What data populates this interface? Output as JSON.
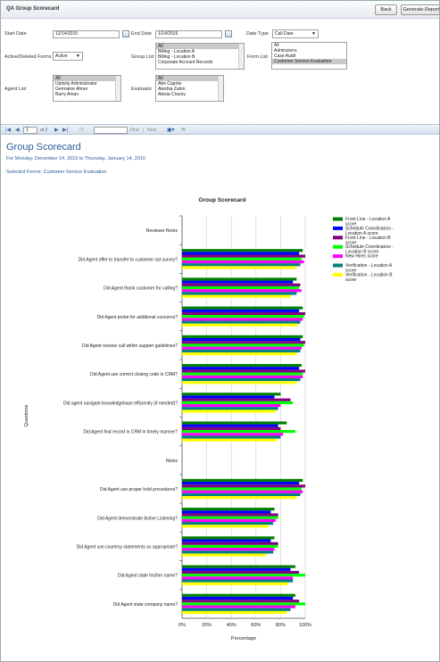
{
  "window": {
    "title": "QA Group Scorecard",
    "back_label": "Back",
    "generate_label": "Generate Report"
  },
  "params": {
    "start_date_label": "Start Date",
    "start_date_value": "12/14/2015",
    "end_date_label": "End Date",
    "end_date_value": "1/14/2016",
    "date_type_label": "Date Type",
    "date_type_value": "Call Date",
    "forms_label": "Active/Deleted Forms",
    "forms_value": "Active",
    "group_list_label": "Group List",
    "group_list_items": [
      "All",
      "Billing - Location A",
      "Billing - Location B",
      "Corporate Account Records"
    ],
    "form_list_label": "Form List",
    "form_list_items": [
      "All",
      "Admissions",
      "Case Audit",
      "Customer Service Evaluation"
    ],
    "agent_list_label": "Agent List",
    "agent_list_items": [
      "All",
      "Uptivity Administrator",
      "Germaine Ahner",
      "Barry Aman"
    ],
    "evaluator_label": "Evaluator",
    "evaluator_items": [
      "All",
      "Abe Capote",
      "Aleshia Zahm",
      "Alesia Cravey"
    ]
  },
  "toolbar": {
    "page_value": "1",
    "page_of": "of 2",
    "find_label": "Find",
    "separator": "|",
    "next_label": "Next"
  },
  "report": {
    "title": "Group Scorecard",
    "subtitle": "For Monday, December 14, 2015 to Thursday, January 14, 2016",
    "forms_line": "Selected Forms: Customer Service Evaluation"
  },
  "chart_data": {
    "type": "bar",
    "orientation": "horizontal",
    "title": "Group Scorecard",
    "xlabel": "Percentage",
    "ylabel": "Questions",
    "xlim": [
      0,
      100
    ],
    "x_ticks": [
      "0%",
      "20%",
      "40%",
      "60%",
      "80%",
      "100%"
    ],
    "grid": true,
    "legend_position": "right",
    "categories": [
      "Reviewer Notes",
      "Did Agent offer to transfer to customer sat survey?",
      "Did Agent thank customer for calling?",
      "Did Agent probe for additional concerns?",
      "Did Agent resolve call within support guidelines?",
      "Did Agent use correct closing code in CRM?",
      "Did agent navigate knowledgebase efficiently (if needed)?",
      "Did Agent find record in CRM in timely manner?",
      "Notes",
      "Did Agent use proper hold procedures?",
      "Did Agent demonstrate Active Listening?",
      "Did Agent use courtesy statements as appropriate?",
      "Did Agent state his/her name?",
      "Did Agent state company name?"
    ],
    "series": [
      {
        "name": "Front Line - Location A score",
        "color": "#008000",
        "values": [
          null,
          98,
          93,
          98,
          98,
          97,
          80,
          85,
          null,
          98,
          75,
          75,
          92,
          92
        ]
      },
      {
        "name": "Schedule Coordinators - Location A score",
        "color": "#0000ff",
        "values": [
          null,
          95,
          90,
          95,
          96,
          95,
          75,
          78,
          null,
          95,
          72,
          72,
          88,
          90
        ]
      },
      {
        "name": "Front Line - Location B score",
        "color": "#800080",
        "values": [
          null,
          100,
          96,
          100,
          100,
          100,
          88,
          80,
          null,
          100,
          78,
          78,
          95,
          95
        ]
      },
      {
        "name": "Schedule Coordinators - Location B score",
        "color": "#00ff00",
        "values": [
          null,
          97,
          95,
          99,
          99,
          98,
          90,
          92,
          null,
          97,
          78,
          78,
          100,
          100
        ]
      },
      {
        "name": "New Hires score",
        "color": "#ff00ff",
        "values": [
          null,
          99,
          97,
          98,
          97,
          98,
          80,
          82,
          null,
          98,
          76,
          75,
          90,
          92
        ]
      },
      {
        "name": "Verification - Location A score",
        "color": "#008080",
        "values": [
          null,
          96,
          93,
          96,
          96,
          96,
          78,
          80,
          null,
          96,
          74,
          74,
          90,
          88
        ]
      },
      {
        "name": "Verification - Location B score",
        "color": "#ffff00",
        "values": [
          null,
          93,
          88,
          94,
          93,
          93,
          76,
          77,
          null,
          93,
          70,
          68,
          86,
          85
        ]
      }
    ]
  }
}
